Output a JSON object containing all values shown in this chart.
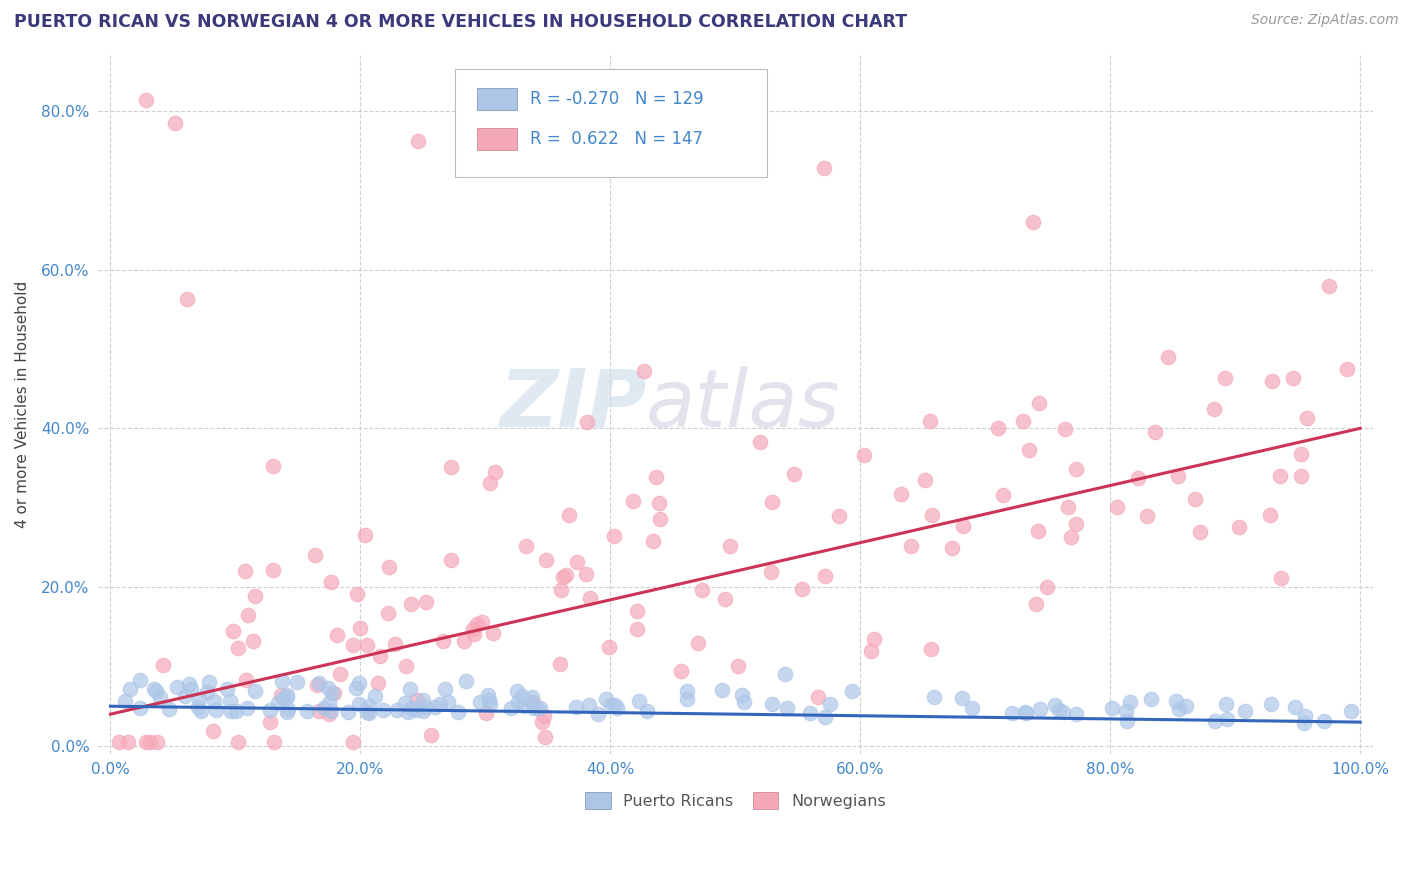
{
  "title": "PUERTO RICAN VS NORWEGIAN 4 OR MORE VEHICLES IN HOUSEHOLD CORRELATION CHART",
  "source": "Source: ZipAtlas.com",
  "ylabel": "4 or more Vehicles in Household",
  "xlim": [
    -0.01,
    1.01
  ],
  "ylim": [
    -0.01,
    0.87
  ],
  "yticks": [
    0.0,
    0.2,
    0.4,
    0.6,
    0.8
  ],
  "ytick_labels": [
    "0.0%",
    "20.0%",
    "40.0%",
    "60.0%",
    "80.0%"
  ],
  "xticks": [
    0.0,
    0.2,
    0.4,
    0.6,
    0.8,
    1.0
  ],
  "xtick_labels": [
    "0.0%",
    "20.0%",
    "40.0%",
    "60.0%",
    "80.0%",
    "100.0%"
  ],
  "legend_r_blue": "-0.270",
  "legend_n_blue": "129",
  "legend_r_pink": "0.622",
  "legend_n_pink": "147",
  "blue_color": "#adc6e8",
  "pink_color": "#f5a8b8",
  "blue_line_color": "#3366bb",
  "pink_line_color": "#cc3355",
  "watermark_zip": "ZIP",
  "watermark_atlas": "atlas",
  "title_color": "#3a3a7a",
  "title_fontsize": 12.5,
  "source_fontsize": 10,
  "axis_label_color": "#444444",
  "tick_label_color": "#4488cc",
  "grid_color": "#d0d0d0",
  "legend_text_color": "#4488cc",
  "bottom_legend_color": "#555555"
}
